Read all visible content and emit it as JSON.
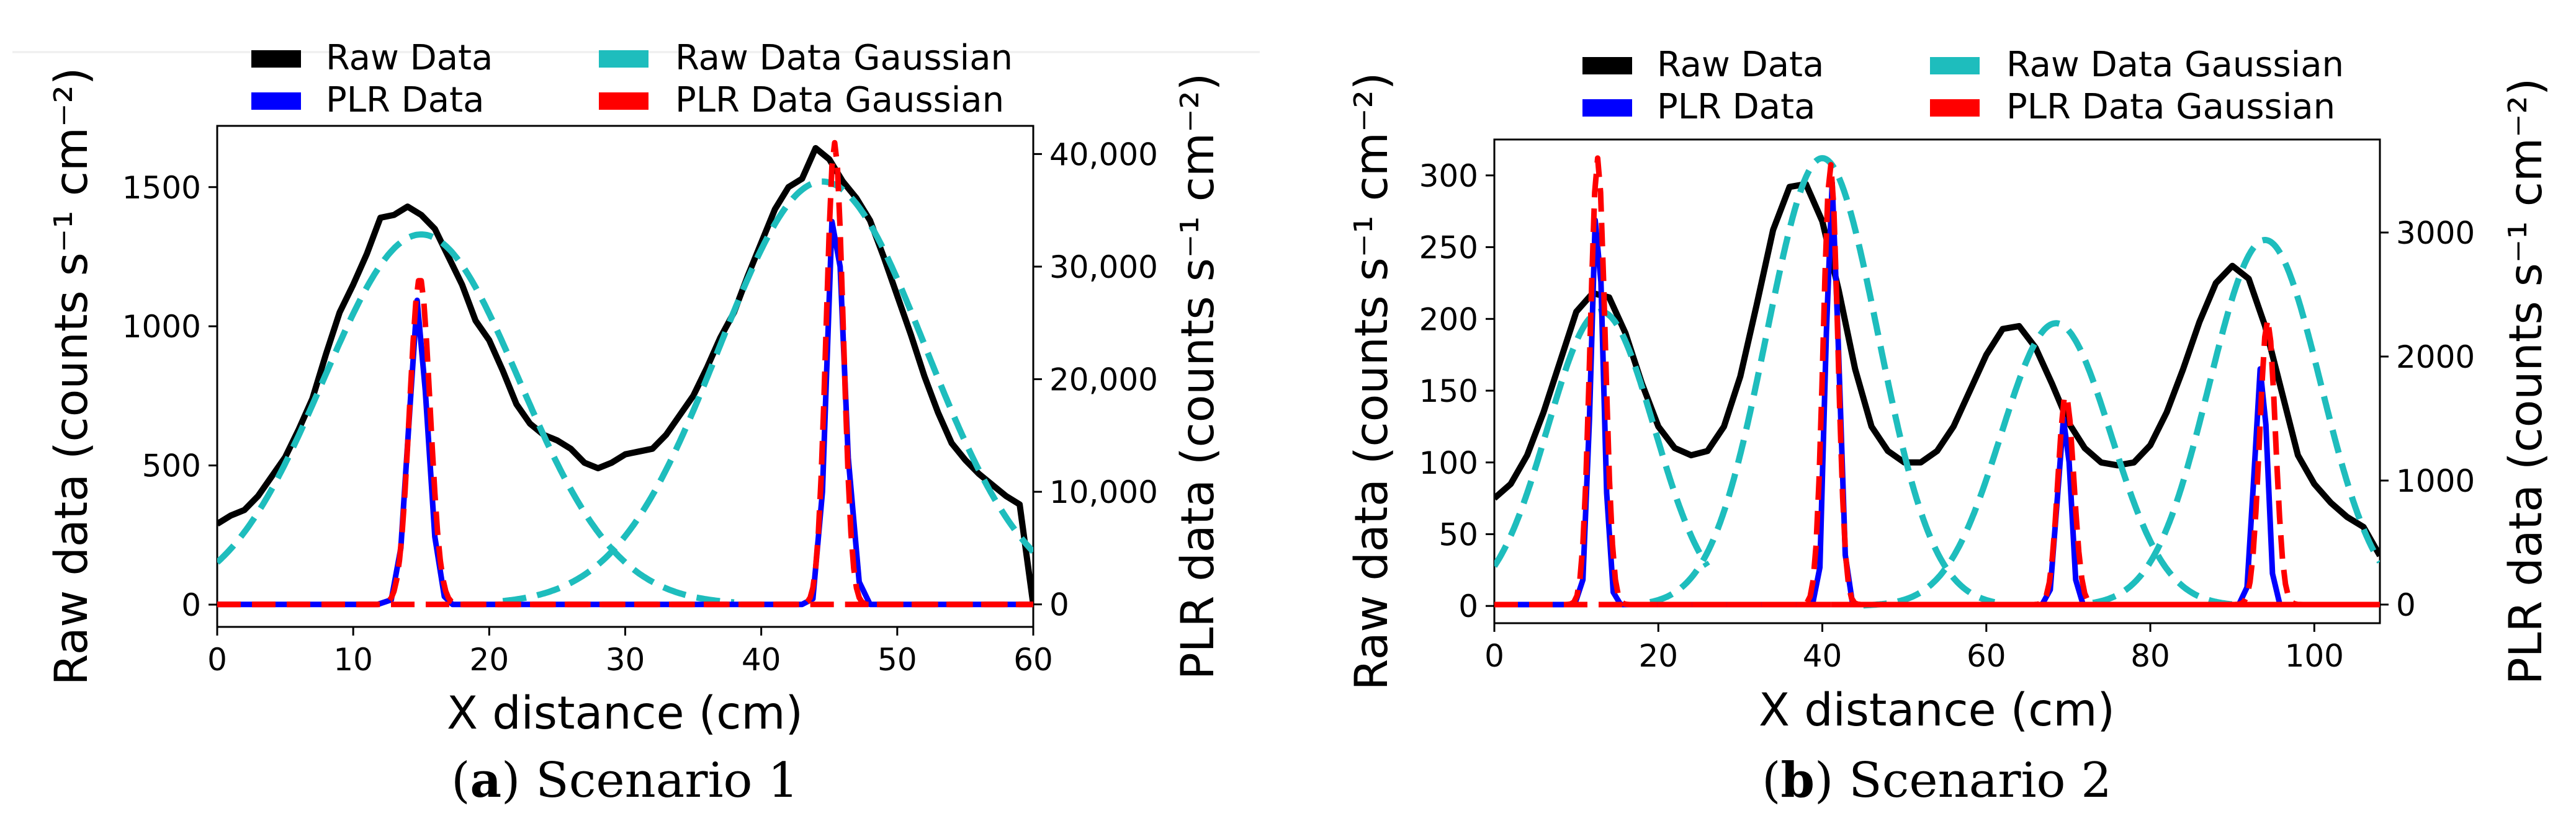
{
  "panels": [
    {
      "caption_letter": "a",
      "caption_text": " Scenario 1"
    },
    {
      "caption_letter": "b",
      "caption_text": " Scenario 2"
    }
  ],
  "legend": {
    "raw_data": "Raw Data",
    "plr_data": "PLR Data",
    "raw_gauss": "Raw Data Gaussian",
    "plr_gauss": "PLR Data Gaussian"
  },
  "colors": {
    "raw_data": "#000000",
    "plr_data": "#0000ff",
    "raw_gauss": "#1ebdbd",
    "plr_gauss": "#ff0000"
  },
  "chart_data": [
    {
      "type": "line",
      "xlabel": "X distance (cm)",
      "ylabel_left": "Raw data (counts s⁻¹ cm⁻²)",
      "ylabel_right": "PLR data (counts s⁻¹ cm⁻²)",
      "xlim": [
        0,
        60
      ],
      "ylim_left": [
        -80,
        1720
      ],
      "ylim_right": [
        -2000,
        42500
      ],
      "xticks": [
        0,
        10,
        20,
        30,
        40,
        50,
        60
      ],
      "yticks_left": [
        0,
        500,
        1000,
        1500
      ],
      "yticks_right": [
        0,
        10000,
        20000,
        30000,
        40000
      ],
      "yticks_right_labels": [
        "0",
        "10,000",
        "20,000",
        "30,000",
        "40,000"
      ],
      "series": [
        {
          "name": "Raw Data",
          "axis": "left",
          "style": "solid",
          "x": [
            0,
            1,
            2,
            3,
            4,
            5,
            6,
            7,
            8,
            9,
            10,
            11,
            12,
            13,
            14,
            15,
            16,
            17,
            18,
            19,
            20,
            21,
            22,
            23,
            24,
            25,
            26,
            27,
            28,
            29,
            30,
            31,
            32,
            33,
            34,
            35,
            36,
            37,
            38,
            39,
            40,
            41,
            42,
            43,
            44,
            45,
            46,
            47,
            48,
            49,
            50,
            51,
            52,
            53,
            54,
            55,
            56,
            57,
            58,
            59,
            60
          ],
          "y": [
            290,
            320,
            340,
            390,
            460,
            530,
            630,
            740,
            900,
            1050,
            1150,
            1260,
            1390,
            1400,
            1430,
            1400,
            1350,
            1250,
            1150,
            1020,
            950,
            840,
            720,
            650,
            610,
            590,
            560,
            510,
            490,
            510,
            540,
            550,
            560,
            610,
            680,
            750,
            850,
            960,
            1050,
            1180,
            1300,
            1420,
            1500,
            1530,
            1640,
            1600,
            1520,
            1460,
            1380,
            1250,
            1110,
            970,
            820,
            690,
            580,
            520,
            470,
            430,
            390,
            360,
            0
          ]
        },
        {
          "name": "Raw Data Gaussian",
          "axis": "left",
          "style": "dashed",
          "gaussians": [
            {
              "amp": 1330,
              "mu": 15,
              "sigma": 7.2,
              "x0": 0,
              "x1": 38
            },
            {
              "amp": 1520,
              "mu": 44.5,
              "sigma": 7.6,
              "x0": 21,
              "x1": 60
            }
          ]
        },
        {
          "name": "PLR Data",
          "axis": "right",
          "style": "solid",
          "x": [
            0,
            11.8,
            12.8,
            13.5,
            14.2,
            14.7,
            15.3,
            16.0,
            16.7,
            17.3,
            43.0,
            43.8,
            44.5,
            45.2,
            45.8,
            46.4,
            47.2,
            48.0,
            60
          ],
          "y": [
            0,
            0,
            400,
            5000,
            18000,
            27000,
            19000,
            6000,
            700,
            0,
            0,
            500,
            10000,
            34000,
            30000,
            13000,
            2000,
            0,
            0
          ]
        },
        {
          "name": "PLR Data Gaussian",
          "axis": "right",
          "style": "dashed",
          "gaussians": [
            {
              "amp": 29000,
              "mu": 14.9,
              "sigma": 0.75,
              "x0": 0,
              "x1": 60
            },
            {
              "amp": 41000,
              "mu": 45.4,
              "sigma": 0.62,
              "x0": 0,
              "x1": 60
            }
          ]
        }
      ]
    },
    {
      "type": "line",
      "xlabel": "X distance (cm)",
      "ylabel_left": "Raw data (counts s⁻¹ cm⁻²)",
      "ylabel_right": "PLR data (counts s⁻¹ cm⁻²)",
      "xlim": [
        0,
        108
      ],
      "ylim_left": [
        -12,
        325
      ],
      "ylim_right": [
        -150,
        3750
      ],
      "xticks": [
        0,
        20,
        40,
        60,
        80,
        100
      ],
      "yticks_left": [
        0,
        50,
        100,
        150,
        200,
        250,
        300
      ],
      "yticks_right": [
        0,
        1000,
        2000,
        3000
      ],
      "yticks_right_labels": [
        "0",
        "1000",
        "2000",
        "3000"
      ],
      "series": [
        {
          "name": "Raw Data",
          "axis": "left",
          "style": "solid",
          "x": [
            0,
            2,
            4,
            6,
            8,
            10,
            12,
            14,
            16,
            18,
            20,
            22,
            24,
            26,
            28,
            30,
            32,
            34,
            36,
            38,
            40,
            42,
            44,
            46,
            48,
            50,
            52,
            54,
            56,
            58,
            60,
            62,
            64,
            66,
            68,
            70,
            72,
            74,
            76,
            78,
            80,
            82,
            84,
            86,
            88,
            90,
            92,
            94,
            96,
            98,
            100,
            102,
            104,
            106,
            108
          ],
          "y": [
            75,
            85,
            105,
            135,
            170,
            205,
            218,
            215,
            190,
            155,
            125,
            110,
            105,
            108,
            125,
            160,
            210,
            262,
            292,
            294,
            268,
            220,
            165,
            125,
            108,
            100,
            100,
            108,
            125,
            150,
            175,
            193,
            195,
            180,
            155,
            128,
            110,
            100,
            98,
            100,
            112,
            135,
            165,
            198,
            225,
            237,
            228,
            195,
            150,
            105,
            85,
            72,
            62,
            55,
            35
          ]
        },
        {
          "name": "Raw Data Gaussian",
          "axis": "left",
          "style": "dashed",
          "gaussians": [
            {
              "amp": 205,
              "mu": 13,
              "sigma": 6.5,
              "x0": 0,
              "x1": 26
            },
            {
              "amp": 312,
              "mu": 40,
              "sigma": 6.8,
              "x0": 19,
              "x1": 61
            },
            {
              "amp": 197,
              "mu": 68.5,
              "sigma": 6.7,
              "x0": 45,
              "x1": 91
            },
            {
              "amp": 255,
              "mu": 94,
              "sigma": 6.8,
              "x0": 73,
              "x1": 108
            }
          ]
        },
        {
          "name": "PLR Data",
          "axis": "right",
          "style": "solid",
          "x": [
            0,
            9.8,
            10.8,
            11.6,
            12.3,
            13.0,
            13.7,
            14.5,
            15.4,
            38.8,
            39.7,
            40.5,
            41.2,
            41.9,
            42.8,
            43.7,
            66.8,
            67.8,
            68.6,
            69.4,
            70.1,
            70.9,
            71.8,
            90.8,
            91.8,
            92.6,
            93.4,
            94.1,
            94.9,
            95.8,
            108
          ],
          "y": [
            0,
            0,
            200,
            1500,
            3100,
            2600,
            900,
            100,
            0,
            0,
            300,
            2200,
            3400,
            2200,
            400,
            0,
            0,
            120,
            800,
            1500,
            1150,
            200,
            0,
            0,
            140,
            1000,
            1900,
            1450,
            250,
            0,
            0
          ]
        },
        {
          "name": "PLR Data Gaussian",
          "axis": "right",
          "style": "dashed",
          "gaussians": [
            {
              "amp": 3600,
              "mu": 12.6,
              "sigma": 0.9,
              "x0": 0,
              "x1": 108
            },
            {
              "amp": 3550,
              "mu": 41.0,
              "sigma": 0.88,
              "x0": 0,
              "x1": 108
            },
            {
              "amp": 1700,
              "mu": 69.7,
              "sigma": 0.95,
              "x0": 0,
              "x1": 108
            },
            {
              "amp": 2300,
              "mu": 94.3,
              "sigma": 0.95,
              "x0": 0,
              "x1": 108
            }
          ]
        }
      ]
    }
  ]
}
